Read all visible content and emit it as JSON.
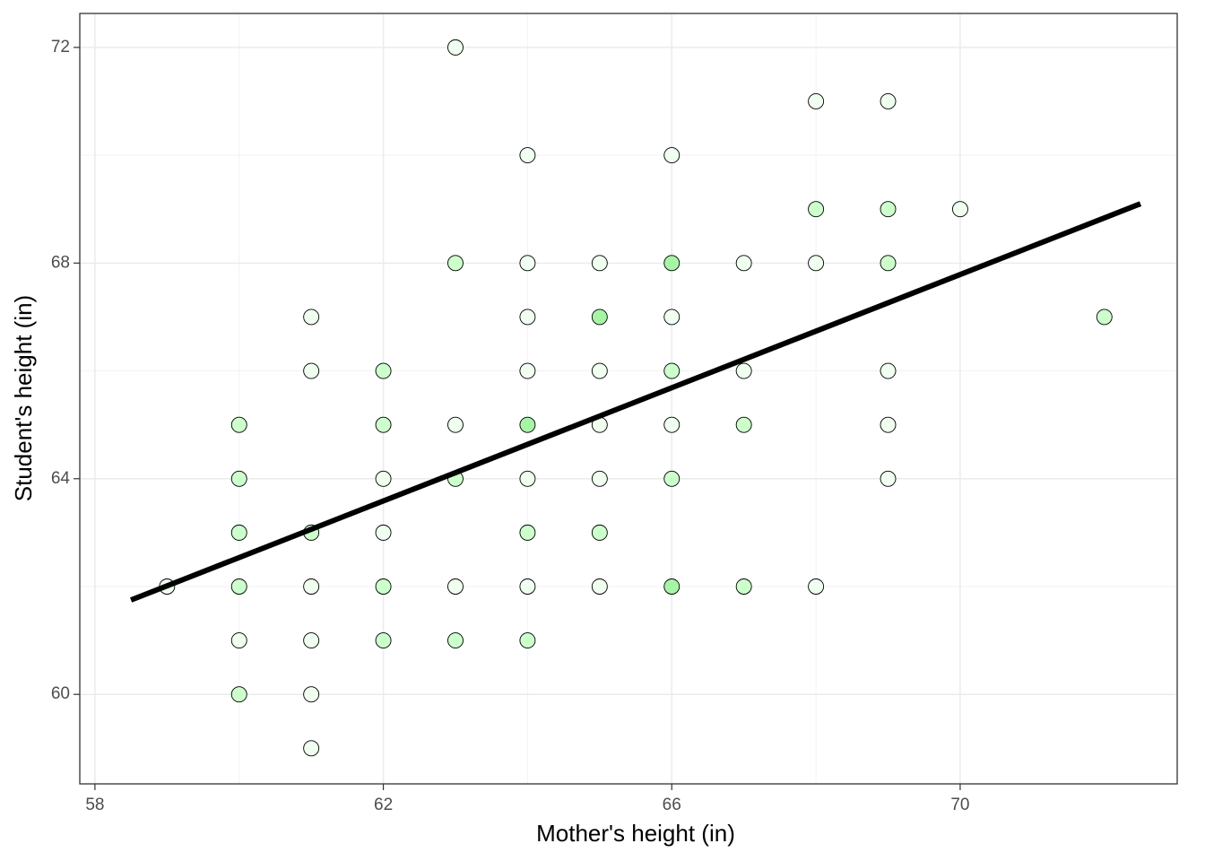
{
  "chart_data": {
    "type": "scatter",
    "xlabel": "Mother's height (in)",
    "ylabel": "Student's height (in)",
    "x": [
      59,
      60,
      60,
      60,
      60,
      60,
      60,
      61,
      61,
      61,
      61,
      61,
      61,
      61,
      62,
      62,
      62,
      62,
      62,
      62,
      63,
      63,
      63,
      63,
      63,
      63,
      64,
      64,
      64,
      64,
      64,
      64,
      64,
      64,
      64,
      65,
      65,
      65,
      65,
      65,
      65,
      65,
      66,
      66,
      66,
      66,
      66,
      66,
      66,
      67,
      67,
      67,
      67,
      68,
      68,
      68,
      68,
      69,
      69,
      69,
      69,
      69,
      69,
      70,
      72
    ],
    "y": [
      62,
      65,
      64,
      63,
      62,
      61,
      60,
      67,
      66,
      63,
      62,
      61,
      60,
      59,
      66,
      65,
      64,
      63,
      62,
      61,
      72,
      68,
      65,
      64,
      62,
      61,
      70,
      68,
      67,
      66,
      65,
      64,
      63,
      62,
      61,
      68,
      67,
      66,
      65,
      64,
      63,
      62,
      70,
      68,
      67,
      66,
      65,
      64,
      62,
      68,
      66,
      65,
      62,
      71,
      69,
      68,
      62,
      71,
      69,
      68,
      66,
      65,
      64,
      69,
      67
    ],
    "colors": [
      "#f0fff0",
      "#ccffcc",
      "#ccffcc",
      "#ccffcc",
      "#ccffcc",
      "#f0fff0",
      "#ccffcc",
      "#f0fff0",
      "#f0fff0",
      "#ccffcc",
      "#f0fff0",
      "#f0fff0",
      "#f0fff0",
      "#f0fff0",
      "#ccffcc",
      "#ccffcc",
      "#f0fff0",
      "#f0fff0",
      "#ccffcc",
      "#ccffcc",
      "#f0fff0",
      "#ccffcc",
      "#f0fff0",
      "#ccffcc",
      "#f0fff0",
      "#ccffcc",
      "#f0fff0",
      "#f0fff0",
      "#f0fff0",
      "#f0fff0",
      "#a6f5a6",
      "#f0fff0",
      "#ccffcc",
      "#f0fff0",
      "#ccffcc",
      "#f0fff0",
      "#a6f5a6",
      "#f0fff0",
      "#f0fff0",
      "#f0fff0",
      "#ccffcc",
      "#f0fff0",
      "#f0fff0",
      "#a6f5a6",
      "#f0fff0",
      "#ccffcc",
      "#f0fff0",
      "#ccffcc",
      "#a6f5a6",
      "#f0fff0",
      "#f0fff0",
      "#ccffcc",
      "#ccffcc",
      "#f0fff0",
      "#ccffcc",
      "#f0fff0",
      "#f0fff0",
      "#f0fff0",
      "#ccffcc",
      "#ccffcc",
      "#f0fff0",
      "#f0fff0",
      "#f0fff0",
      "#f0fff0",
      "#ccffcc"
    ],
    "fit_line": {
      "x": [
        58.5,
        72.5
      ],
      "y": [
        61.75,
        69.1
      ],
      "color": "#000000"
    },
    "xlim": [
      57.79,
      73.01
    ],
    "ylim": [
      58.34,
      72.63
    ],
    "xticks": [
      58,
      62,
      66,
      70
    ],
    "yticks": [
      60,
      64,
      68,
      72
    ],
    "grid": true,
    "minor_grid": true
  }
}
